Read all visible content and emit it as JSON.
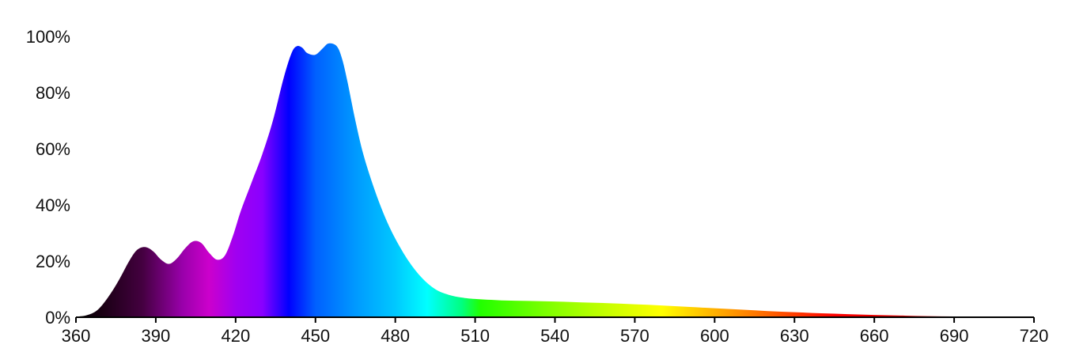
{
  "chart_data": {
    "type": "area",
    "title": "",
    "xlabel": "",
    "ylabel": "",
    "xlim": [
      360,
      720
    ],
    "ylim": [
      0,
      100
    ],
    "x_ticks": [
      "360",
      "390",
      "420",
      "450",
      "480",
      "510",
      "540",
      "570",
      "600",
      "630",
      "660",
      "690",
      "720"
    ],
    "y_ticks": [
      "0%",
      "20%",
      "40%",
      "60%",
      "80%",
      "100%"
    ],
    "grid": false,
    "legend": "none",
    "fill": "visible-spectrum gradient (violet to red) under the curve",
    "series": [
      {
        "x": [
          360,
          364,
          368,
          372,
          376,
          380,
          383,
          386,
          389,
          392,
          395,
          398,
          401,
          404,
          407,
          410,
          413,
          416,
          419,
          422,
          426,
          430,
          434,
          438,
          441,
          443,
          445,
          447,
          450,
          453,
          455,
          458,
          460,
          462,
          465,
          468,
          472,
          476,
          480,
          485,
          490,
          495,
          500,
          505,
          510,
          520,
          530,
          540,
          550,
          560,
          570,
          580,
          590,
          600,
          610,
          620,
          630,
          640,
          650,
          660,
          670,
          680,
          690,
          700,
          710,
          720
        ],
        "values": [
          0.2,
          0.7,
          2.5,
          7,
          13,
          20,
          24,
          25,
          23.5,
          20.5,
          19,
          21,
          24.5,
          27,
          26.5,
          23,
          20.5,
          22,
          29,
          38,
          48,
          58,
          70,
          85,
          94,
          96.5,
          96,
          94,
          93.5,
          96,
          97.5,
          96.5,
          92,
          84,
          70,
          58,
          46,
          36,
          28,
          20,
          14,
          10,
          8,
          7,
          6.5,
          6,
          5.8,
          5.6,
          5.3,
          5.0,
          4.6,
          4.2,
          3.7,
          3.2,
          2.7,
          2.2,
          1.8,
          1.4,
          1.1,
          0.8,
          0.6,
          0.4,
          0.3,
          0.2,
          0.1,
          0
        ]
      }
    ],
    "colors": {
      "axis": "#000000",
      "text": "#111111",
      "spectrum": [
        {
          "nm": 360,
          "color": "#000000"
        },
        {
          "nm": 370,
          "color": "#1a0014"
        },
        {
          "nm": 385,
          "color": "#440040"
        },
        {
          "nm": 400,
          "color": "#9900aa"
        },
        {
          "nm": 410,
          "color": "#cc00cc"
        },
        {
          "nm": 420,
          "color": "#a100f0"
        },
        {
          "nm": 430,
          "color": "#8a00ff"
        },
        {
          "nm": 440,
          "color": "#0000ff"
        },
        {
          "nm": 450,
          "color": "#0060ff"
        },
        {
          "nm": 465,
          "color": "#0099ff"
        },
        {
          "nm": 480,
          "color": "#00c8ff"
        },
        {
          "nm": 492,
          "color": "#00ffff"
        },
        {
          "nm": 505,
          "color": "#00ff80"
        },
        {
          "nm": 512,
          "color": "#22ff00"
        },
        {
          "nm": 540,
          "color": "#88ff00"
        },
        {
          "nm": 560,
          "color": "#c8ff00"
        },
        {
          "nm": 580,
          "color": "#ffff00"
        },
        {
          "nm": 600,
          "color": "#ffb000"
        },
        {
          "nm": 620,
          "color": "#ff6600"
        },
        {
          "nm": 645,
          "color": "#ff0000"
        },
        {
          "nm": 680,
          "color": "#cc0000"
        },
        {
          "nm": 700,
          "color": "#a00000"
        },
        {
          "nm": 720,
          "color": "#700000"
        }
      ]
    }
  }
}
